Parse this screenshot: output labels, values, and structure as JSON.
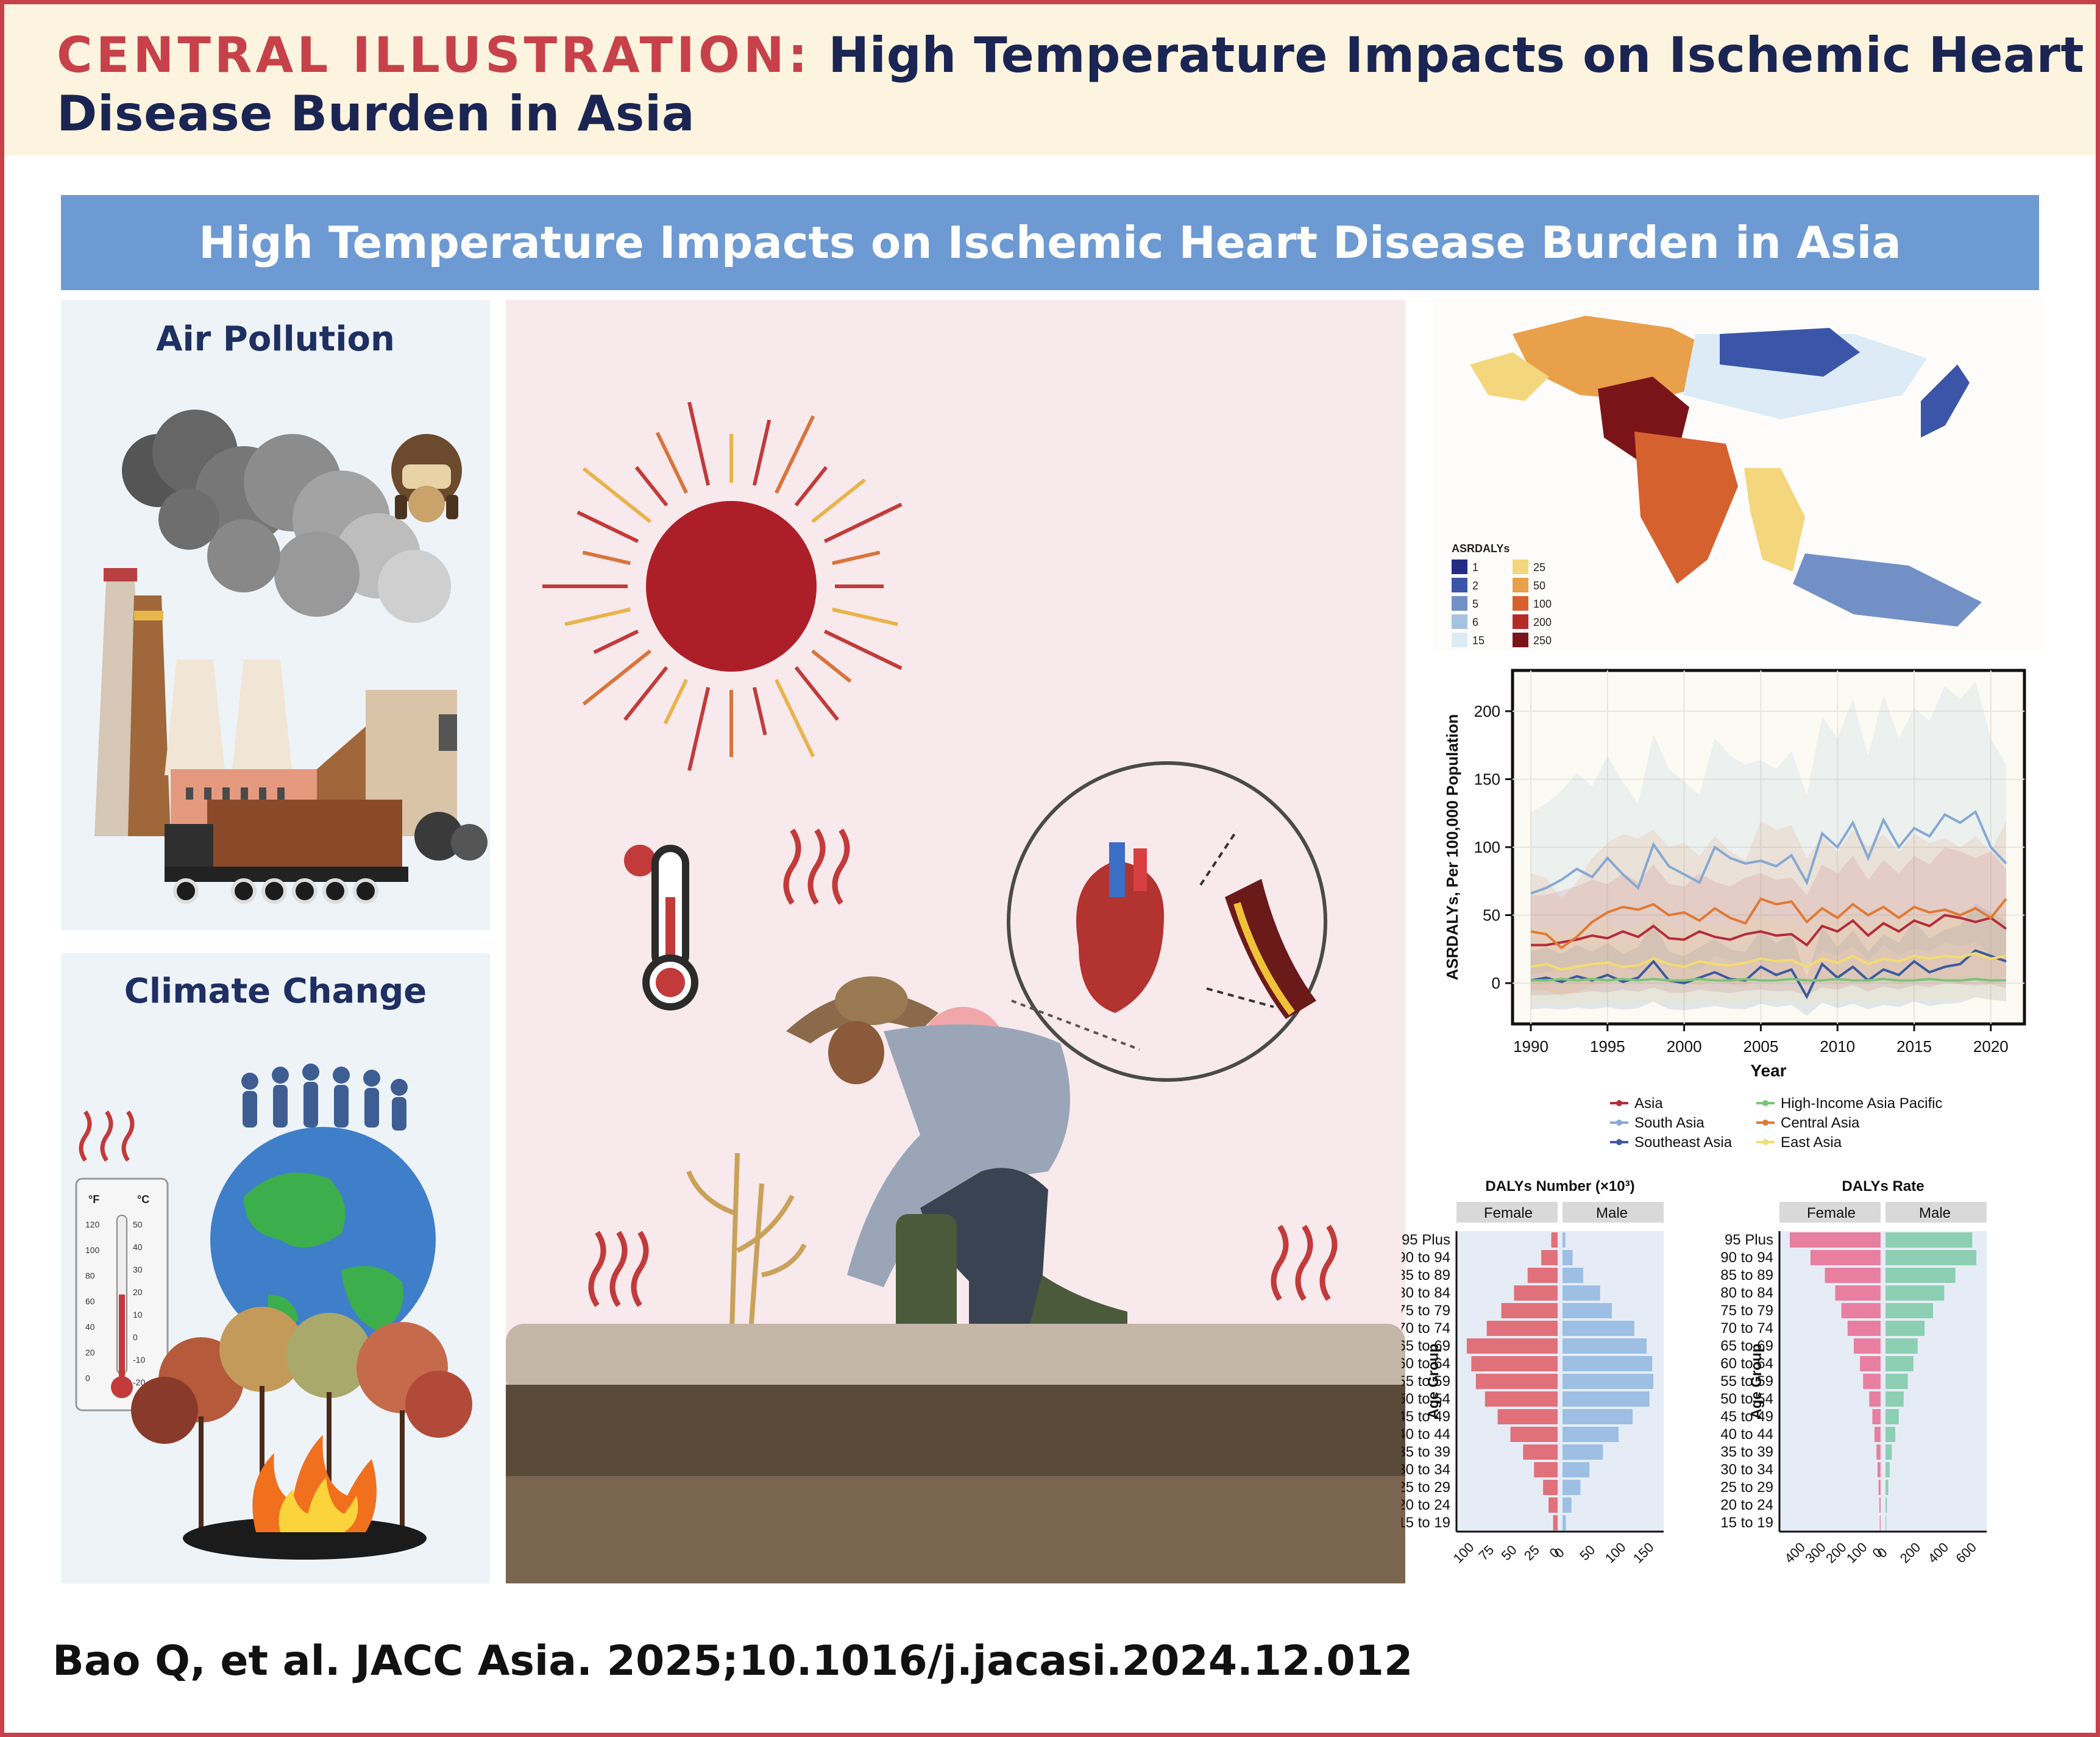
{
  "header": {
    "label": "CENTRAL ILLUSTRATION:",
    "title": "High Temperature Impacts on Ischemic Heart Disease Burden in Asia"
  },
  "banner": {
    "title": "High Temperature Impacts on Ischemic Heart Disease Burden in Asia"
  },
  "panels": {
    "air_pollution": {
      "title": "Air Pollution"
    },
    "climate_change": {
      "title": "Climate Change"
    },
    "thermometer": {
      "f_label": "°F",
      "c_label": "°C",
      "f_ticks": [
        "120",
        "100",
        "80",
        "60",
        "40",
        "20",
        "0"
      ],
      "c_ticks": [
        "50",
        "40",
        "30",
        "20",
        "10",
        "0",
        "-10",
        "-20"
      ]
    }
  },
  "map": {
    "legend_title": "ASRDALYs",
    "legend": [
      {
        "label": "1",
        "color": "#232c82"
      },
      {
        "label": "2",
        "color": "#3b55a8"
      },
      {
        "label": "5",
        "color": "#7390c6"
      },
      {
        "label": "6",
        "color": "#a7c2e0"
      },
      {
        "label": "15",
        "color": "#dcebf5"
      },
      {
        "label": "25",
        "color": "#f4d77c"
      },
      {
        "label": "50",
        "color": "#e8a04a"
      },
      {
        "label": "100",
        "color": "#d5612f"
      },
      {
        "label": "200",
        "color": "#b52b28"
      },
      {
        "label": "250",
        "color": "#7b1418"
      }
    ]
  },
  "chart_data": [
    {
      "type": "line",
      "xlabel": "Year",
      "ylabel": "ASRDALYs, Per 100,000 Population",
      "xlim": [
        1990,
        2021
      ],
      "ylim": [
        -30,
        230
      ],
      "xticks": [
        "1990",
        "1995",
        "2000",
        "2005",
        "2010",
        "2015",
        "2020"
      ],
      "yticks": [
        "0",
        "50",
        "100",
        "150",
        "200"
      ],
      "x": [
        1990,
        1991,
        1992,
        1993,
        1994,
        1995,
        1996,
        1997,
        1998,
        1999,
        2000,
        2001,
        2002,
        2003,
        2004,
        2005,
        2006,
        2007,
        2008,
        2009,
        2010,
        2011,
        2012,
        2013,
        2014,
        2015,
        2016,
        2017,
        2018,
        2019,
        2020,
        2021
      ],
      "series": [
        {
          "name": "Asia",
          "color": "#b52b3a",
          "values": [
            28,
            28,
            30,
            32,
            35,
            33,
            38,
            34,
            42,
            33,
            32,
            38,
            34,
            32,
            36,
            38,
            35,
            36,
            28,
            42,
            38,
            46,
            35,
            44,
            38,
            46,
            42,
            50,
            48,
            45,
            48,
            40
          ]
        },
        {
          "name": "South Asia",
          "color": "#86a9d2",
          "values": [
            66,
            70,
            76,
            84,
            78,
            92,
            80,
            70,
            102,
            86,
            80,
            74,
            100,
            92,
            88,
            90,
            86,
            94,
            74,
            110,
            100,
            118,
            92,
            120,
            100,
            114,
            108,
            124,
            118,
            126,
            100,
            88
          ]
        },
        {
          "name": "Southeast Asia",
          "color": "#3b5aa0",
          "values": [
            2,
            4,
            1,
            5,
            2,
            6,
            1,
            4,
            16,
            2,
            0,
            4,
            8,
            3,
            2,
            12,
            6,
            10,
            -10,
            14,
            4,
            12,
            2,
            10,
            6,
            16,
            8,
            12,
            14,
            24,
            20,
            16
          ]
        },
        {
          "name": "High-Income Asia Pacific",
          "color": "#7cc47a",
          "values": [
            2,
            2,
            3,
            2,
            3,
            2,
            3,
            2,
            3,
            2,
            2,
            3,
            2,
            2,
            3,
            2,
            2,
            3,
            2,
            2,
            3,
            2,
            2,
            3,
            2,
            2,
            3,
            2,
            2,
            3,
            2,
            2
          ]
        },
        {
          "name": "Central Asia",
          "color": "#e07a35",
          "values": [
            38,
            36,
            26,
            34,
            45,
            52,
            56,
            54,
            58,
            50,
            52,
            46,
            55,
            48,
            44,
            62,
            58,
            60,
            45,
            55,
            48,
            58,
            50,
            56,
            48,
            56,
            52,
            54,
            50,
            55,
            48,
            62
          ]
        },
        {
          "name": "East Asia",
          "color": "#f3dc70",
          "values": [
            12,
            14,
            10,
            12,
            14,
            15,
            12,
            13,
            18,
            14,
            12,
            16,
            14,
            13,
            15,
            18,
            16,
            17,
            12,
            18,
            15,
            20,
            14,
            18,
            16,
            20,
            18,
            20,
            19,
            22,
            18,
            20
          ]
        }
      ]
    },
    {
      "type": "bar",
      "title": "DALYs Number (×10³)",
      "ylabel": "Age Group",
      "sides": [
        "Female",
        "Male"
      ],
      "categories": [
        "95 Plus",
        "90 to 94",
        "85 to 89",
        "80 to 84",
        "75 to 79",
        "70 to 74",
        "65 to 69",
        "60 to 64",
        "55 to 59",
        "50 to 54",
        "45 to 49",
        "40 to 44",
        "35 to 39",
        "30 to 34",
        "25 to 29",
        "20 to 24",
        "15 to 19"
      ],
      "series": [
        {
          "name": "Female",
          "color": "#e0717a",
          "values": [
            7,
            18,
            33,
            48,
            62,
            78,
            100,
            95,
            90,
            80,
            66,
            52,
            38,
            26,
            16,
            10,
            5
          ]
        },
        {
          "name": "Male",
          "color": "#9dbfe3",
          "values": [
            5,
            18,
            37,
            67,
            88,
            128,
            150,
            160,
            162,
            155,
            125,
            100,
            72,
            48,
            32,
            16,
            6
          ]
        }
      ],
      "xticks_left": [
        "100",
        "75",
        "50",
        "25",
        "0"
      ],
      "xticks_right": [
        "0",
        "50",
        "100",
        "150"
      ]
    },
    {
      "type": "bar",
      "title": "DALYs Rate",
      "ylabel": "Age Group",
      "sides": [
        "Female",
        "Male"
      ],
      "categories": [
        "95 Plus",
        "90 to 94",
        "85 to 89",
        "80 to 84",
        "75 to 79",
        "70 to 74",
        "65 to 69",
        "60 to 64",
        "55 to 59",
        "50 to 54",
        "45 to 49",
        "40 to 44",
        "35 to 39",
        "30 to 34",
        "25 to 29",
        "20 to 24",
        "15 to 19"
      ],
      "series": [
        {
          "name": "Female",
          "color": "#e87fa0",
          "values": [
            440,
            340,
            270,
            220,
            190,
            160,
            130,
            100,
            85,
            55,
            40,
            30,
            20,
            15,
            10,
            6,
            4
          ]
        },
        {
          "name": "Male",
          "color": "#8ccfb3",
          "values": [
            620,
            650,
            500,
            420,
            340,
            280,
            230,
            200,
            160,
            130,
            95,
            70,
            45,
            30,
            20,
            10,
            5
          ]
        }
      ],
      "xticks_left": [
        "400",
        "300",
        "200",
        "100",
        "0"
      ],
      "xticks_right": [
        "0",
        "200",
        "400",
        "600"
      ]
    }
  ],
  "citation": "Bao Q, et al. JACC Asia. 2025;10.1016/j.jacasi.2024.12.012"
}
